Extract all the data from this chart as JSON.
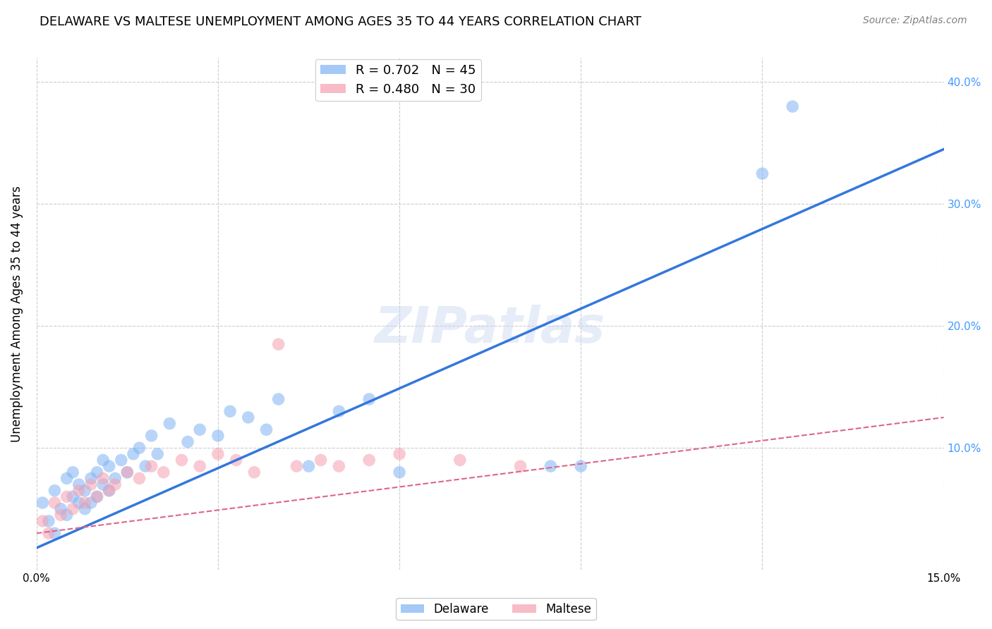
{
  "title": "DELAWARE VS MALTESE UNEMPLOYMENT AMONG AGES 35 TO 44 YEARS CORRELATION CHART",
  "source": "Source: ZipAtlas.com",
  "ylabel": "Unemployment Among Ages 35 to 44 years",
  "xlim": [
    0.0,
    0.15
  ],
  "ylim": [
    0.0,
    0.42
  ],
  "xticks": [
    0.0,
    0.03,
    0.06,
    0.09,
    0.12,
    0.15
  ],
  "xticklabels": [
    "0.0%",
    "",
    "",
    "",
    "",
    "15.0%"
  ],
  "yticks": [
    0.0,
    0.1,
    0.2,
    0.3,
    0.4
  ],
  "yticklabels": [
    "",
    "10.0%",
    "20.0%",
    "30.0%",
    "40.0%"
  ],
  "delaware_color": "#7eb3f5",
  "maltese_color": "#f5a0b0",
  "delaware_R": 0.702,
  "delaware_N": 45,
  "maltese_R": 0.48,
  "maltese_N": 30,
  "background_color": "#ffffff",
  "grid_color": "#cccccc",
  "watermark": "ZIPatlas",
  "delaware_scatter_x": [
    0.001,
    0.002,
    0.003,
    0.003,
    0.004,
    0.005,
    0.005,
    0.006,
    0.006,
    0.007,
    0.007,
    0.008,
    0.008,
    0.009,
    0.009,
    0.01,
    0.01,
    0.011,
    0.011,
    0.012,
    0.012,
    0.013,
    0.014,
    0.015,
    0.016,
    0.017,
    0.018,
    0.019,
    0.02,
    0.022,
    0.025,
    0.027,
    0.03,
    0.032,
    0.035,
    0.038,
    0.04,
    0.045,
    0.05,
    0.055,
    0.06,
    0.085,
    0.09,
    0.12,
    0.125
  ],
  "delaware_scatter_y": [
    0.055,
    0.04,
    0.065,
    0.03,
    0.05,
    0.045,
    0.075,
    0.06,
    0.08,
    0.055,
    0.07,
    0.05,
    0.065,
    0.055,
    0.075,
    0.06,
    0.08,
    0.07,
    0.09,
    0.065,
    0.085,
    0.075,
    0.09,
    0.08,
    0.095,
    0.1,
    0.085,
    0.11,
    0.095,
    0.12,
    0.105,
    0.115,
    0.11,
    0.13,
    0.125,
    0.115,
    0.14,
    0.085,
    0.13,
    0.14,
    0.08,
    0.085,
    0.085,
    0.325,
    0.38
  ],
  "maltese_scatter_x": [
    0.001,
    0.002,
    0.003,
    0.004,
    0.005,
    0.006,
    0.007,
    0.008,
    0.009,
    0.01,
    0.011,
    0.012,
    0.013,
    0.015,
    0.017,
    0.019,
    0.021,
    0.024,
    0.027,
    0.03,
    0.033,
    0.036,
    0.04,
    0.043,
    0.047,
    0.05,
    0.055,
    0.06,
    0.07,
    0.08
  ],
  "maltese_scatter_y": [
    0.04,
    0.03,
    0.055,
    0.045,
    0.06,
    0.05,
    0.065,
    0.055,
    0.07,
    0.06,
    0.075,
    0.065,
    0.07,
    0.08,
    0.075,
    0.085,
    0.08,
    0.09,
    0.085,
    0.095,
    0.09,
    0.08,
    0.185,
    0.085,
    0.09,
    0.085,
    0.09,
    0.095,
    0.09,
    0.085
  ],
  "delaware_line_x": [
    0.0,
    0.15
  ],
  "delaware_line_y": [
    0.018,
    0.345
  ],
  "maltese_line_x": [
    0.0,
    0.15
  ],
  "maltese_line_y": [
    0.03,
    0.125
  ],
  "title_fontsize": 13,
  "axis_label_fontsize": 12,
  "tick_fontsize": 11,
  "watermark_fontsize": 52,
  "right_tick_color": "#4499ff",
  "scatter_size": 160
}
